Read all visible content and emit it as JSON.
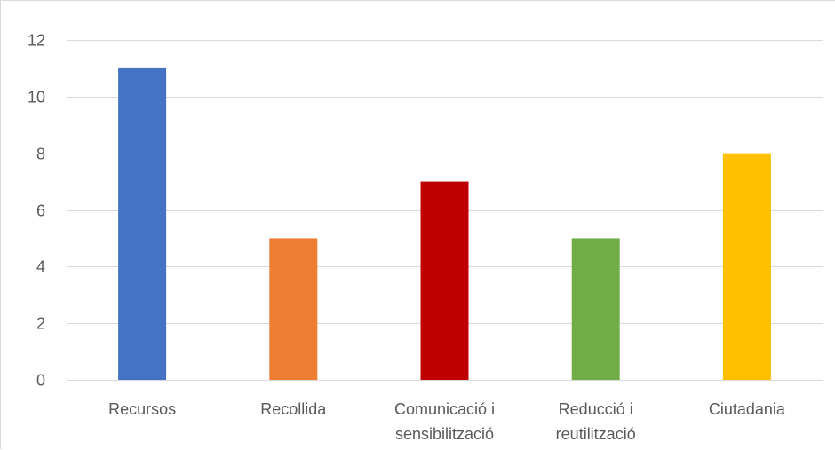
{
  "chart_data": {
    "type": "bar",
    "title": "",
    "xlabel": "",
    "ylabel": "",
    "categories": [
      [
        "Recursos"
      ],
      [
        "Recollida"
      ],
      [
        "Comunicació i",
        "sensibilització"
      ],
      [
        "Reducció i",
        "reutilització"
      ],
      [
        "Ciutadania"
      ]
    ],
    "values": [
      11,
      5,
      7,
      5,
      8
    ],
    "colors": [
      "#4472c4",
      "#ed7d31",
      "#c00000",
      "#70ad47",
      "#ffc000"
    ],
    "ylim": [
      0,
      12
    ],
    "yticks": [
      0,
      2,
      4,
      6,
      8,
      10,
      12
    ],
    "grid": true,
    "legend": "none"
  }
}
